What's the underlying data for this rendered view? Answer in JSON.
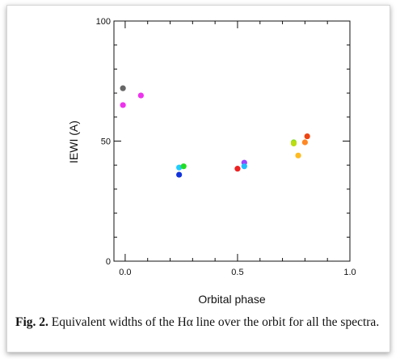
{
  "chart_data": {
    "type": "scatter",
    "title": "",
    "xlabel": "Orbital phase",
    "ylabel": "IEWI (A)",
    "xlim": [
      -0.05,
      1.0
    ],
    "ylim": [
      0,
      100
    ],
    "x_ticks": [
      0.0,
      0.5,
      1.0
    ],
    "x_tick_labels": [
      "0.0",
      "0.5",
      "1.0"
    ],
    "y_ticks": [
      0,
      50,
      100
    ],
    "y_tick_labels": [
      "0",
      "50",
      "100"
    ],
    "grid": false,
    "legend": "none",
    "points": [
      {
        "x": -0.01,
        "y": 72,
        "color": "#666666"
      },
      {
        "x": -0.01,
        "y": 65,
        "color": "#ee33ee"
      },
      {
        "x": 0.07,
        "y": 69,
        "color": "#ee33ee"
      },
      {
        "x": 0.24,
        "y": 39,
        "color": "#22ccff"
      },
      {
        "x": 0.26,
        "y": 39.5,
        "color": "#22dd22"
      },
      {
        "x": 0.24,
        "y": 36,
        "color": "#1133dd"
      },
      {
        "x": 0.5,
        "y": 38.5,
        "color": "#ee2222"
      },
      {
        "x": 0.53,
        "y": 41,
        "color": "#9944ff"
      },
      {
        "x": 0.53,
        "y": 39.5,
        "color": "#22bbff"
      },
      {
        "x": 0.75,
        "y": 49.5,
        "color": "#88dd22"
      },
      {
        "x": 0.75,
        "y": 49,
        "color": "#bbdd11"
      },
      {
        "x": 0.77,
        "y": 44,
        "color": "#ffbb22"
      },
      {
        "x": 0.8,
        "y": 49.5,
        "color": "#ff8822"
      },
      {
        "x": 0.81,
        "y": 52,
        "color": "#ee4411"
      }
    ]
  },
  "caption": {
    "label": "Fig. 2.",
    "text": " Equivalent widths of the Hα line over the orbit for all the spectra."
  }
}
